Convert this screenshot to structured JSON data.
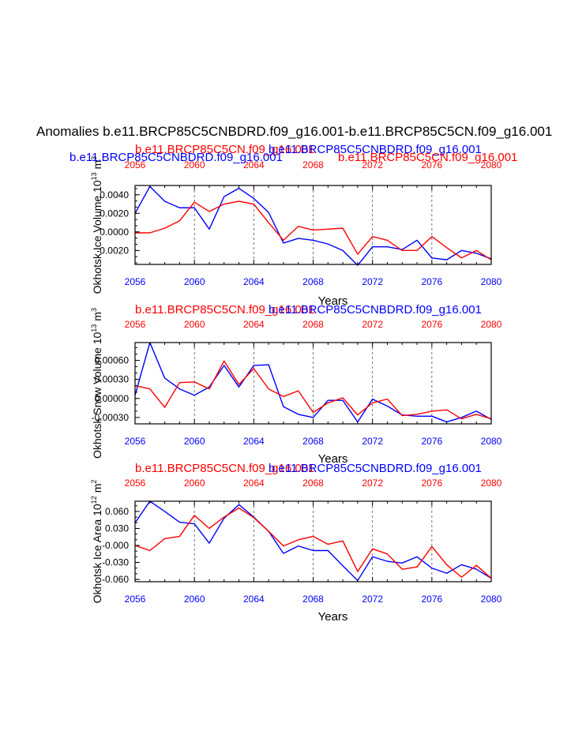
{
  "title": "Anomalies b.e11.BRCP85C5CNBDRD.f09_g16.001-b.e11.BRCP85C5CN.f09_g16.001",
  "colors": {
    "series_a": "#0000ff",
    "series_b": "#ff0000",
    "axis": "#000000",
    "grid": "#555555"
  },
  "chart_data": [
    {
      "type": "line",
      "id": "ice-volume",
      "ylabel_main": "Okhotsk Ice Volume 10",
      "ylabel_exp": "13",
      "ylabel_unit": "m",
      "ylabel_unit_exp": "3",
      "xlabel": "Years",
      "top_labels": [
        {
          "text": "b.e11.BRCP85C5CN.f09_g16.001",
          "color": "red",
          "pos": "left"
        },
        {
          "text": "b.e11.BRCP85C5CNBDRD.f09_g16.001",
          "color": "blue",
          "pos": "center"
        },
        {
          "text": "b.e11.BRCP85C5CNBDRD.f09_g16.001",
          "color": "blue",
          "pos": "far-left"
        },
        {
          "text": "b.e11.BRCP85C5CN.f09_g16.001",
          "color": "red",
          "pos": "right"
        }
      ],
      "xlim": [
        2056,
        2080
      ],
      "ylim": [
        -0.0035,
        0.005
      ],
      "x_ticks": [
        2056,
        2060,
        2064,
        2068,
        2072,
        2076,
        2080
      ],
      "y_ticks": [
        0.004,
        0.002,
        0.0,
        -0.002
      ],
      "y_tick_labels": [
        "0.0040",
        "0.0020",
        "0.0000",
        "-0.0020"
      ],
      "x": [
        2056,
        2057,
        2058,
        2059,
        2060,
        2061,
        2062,
        2063,
        2064,
        2065,
        2066,
        2067,
        2068,
        2069,
        2070,
        2071,
        2072,
        2073,
        2074,
        2075,
        2076,
        2077,
        2078,
        2079,
        2080
      ],
      "series": [
        {
          "name": "b.e11.BRCP85C5CNBDRD.f09_g16.001",
          "color": "blue",
          "values": [
            0.002,
            0.0049,
            0.0033,
            0.0026,
            0.0026,
            0.0003,
            0.0038,
            0.0047,
            0.0036,
            0.0021,
            -0.0012,
            -0.0007,
            -0.0009,
            -0.0013,
            -0.002,
            -0.0036,
            -0.0016,
            -0.0016,
            -0.0019,
            -0.0009,
            -0.0028,
            -0.003,
            -0.002,
            -0.0023,
            -0.0029
          ]
        },
        {
          "name": "b.e11.BRCP85C5CN.f09_g16.001",
          "color": "red",
          "values": [
            -0.0001,
            -0.0001,
            0.0004,
            0.0012,
            0.0032,
            0.0022,
            0.003,
            0.0033,
            0.003,
            0.001,
            -0.0009,
            0.0006,
            0.0002,
            0.0003,
            0.0004,
            -0.0024,
            -0.0005,
            -0.0009,
            -0.002,
            -0.002,
            -0.0005,
            -0.0017,
            -0.0028,
            -0.002,
            -0.003
          ]
        }
      ]
    },
    {
      "type": "line",
      "id": "snow-volume",
      "ylabel_main": "Okhotsk Snow Volume 10",
      "ylabel_exp": "13",
      "ylabel_unit": "m",
      "ylabel_unit_exp": "3",
      "xlabel": "Years",
      "top_labels": [
        {
          "text": "b.e11.BRCP85C5CN.f09_g16.001",
          "color": "red",
          "pos": "left"
        },
        {
          "text": "b.e11.BRCP85C5CNBDRD.f09_g16.001",
          "color": "blue",
          "pos": "center"
        }
      ],
      "xlim": [
        2056,
        2080
      ],
      "ylim": [
        -0.0004,
        0.00088
      ],
      "x_ticks": [
        2056,
        2060,
        2064,
        2068,
        2072,
        2076,
        2080
      ],
      "y_ticks": [
        0.0006,
        0.0003,
        0.0,
        -0.0003
      ],
      "y_tick_labels": [
        "0.00060",
        "0.00030",
        "0.00000",
        "-0.00030"
      ],
      "x": [
        2056,
        2057,
        2058,
        2059,
        2060,
        2061,
        2062,
        2063,
        2064,
        2065,
        2066,
        2067,
        2068,
        2069,
        2070,
        2071,
        2072,
        2073,
        2074,
        2075,
        2076,
        2077,
        2078,
        2079,
        2080
      ],
      "series": [
        {
          "name": "b.e11.BRCP85C5CNBDRD.f09_g16.001",
          "color": "blue",
          "values": [
            5e-05,
            0.00088,
            0.00032,
            0.00015,
            5e-05,
            0.00018,
            0.00052,
            0.00018,
            0.00052,
            0.00053,
            -0.00013,
            -0.00025,
            -0.0003,
            -3e-05,
            -3e-05,
            -0.00037,
            -1e-05,
            -0.00012,
            -0.00026,
            -0.00028,
            -0.00028,
            -0.00037,
            -0.0003,
            -0.0002,
            -0.00033
          ]
        },
        {
          "name": "b.e11.BRCP85C5CN.f09_g16.001",
          "color": "red",
          "values": [
            0.0002,
            0.00015,
            -0.00014,
            0.00025,
            0.00026,
            0.00015,
            0.00059,
            0.00022,
            0.00047,
            0.00015,
            3e-05,
            0.00012,
            -0.00022,
            -7e-05,
            1e-05,
            -0.00026,
            -7e-05,
            -1e-05,
            -0.00027,
            -0.00025,
            -0.0002,
            -0.00018,
            -0.00032,
            -0.00025,
            -0.00032
          ]
        }
      ]
    },
    {
      "type": "line",
      "id": "ice-area",
      "ylabel_main": "Okhotsk Ice Area 10",
      "ylabel_exp": "12",
      "ylabel_unit": "m",
      "ylabel_unit_exp": "2",
      "xlabel": "Years",
      "top_labels": [
        {
          "text": "b.e11.BRCP85C5CN.f09_g16.001",
          "color": "red",
          "pos": "left"
        },
        {
          "text": "b.e11.BRCP85C5CNBDRD.f09_g16.001",
          "color": "blue",
          "pos": "center"
        }
      ],
      "xlim": [
        2056,
        2080
      ],
      "ylim": [
        -0.064,
        0.078
      ],
      "x_ticks": [
        2056,
        2060,
        2064,
        2068,
        2072,
        2076,
        2080
      ],
      "y_ticks": [
        0.06,
        0.03,
        0.0,
        -0.03,
        -0.06
      ],
      "y_tick_labels": [
        "0.060",
        "0.030",
        "-0.000",
        "-0.030",
        "-0.060"
      ],
      "x": [
        2056,
        2057,
        2058,
        2059,
        2060,
        2061,
        2062,
        2063,
        2064,
        2065,
        2066,
        2067,
        2068,
        2069,
        2070,
        2071,
        2072,
        2073,
        2074,
        2075,
        2076,
        2077,
        2078,
        2079,
        2080
      ],
      "series": [
        {
          "name": "b.e11.BRCP85C5CNBDRD.f09_g16.001",
          "color": "blue",
          "values": [
            0.04,
            0.078,
            0.06,
            0.041,
            0.038,
            0.004,
            0.048,
            0.072,
            0.05,
            0.025,
            -0.014,
            -0.001,
            -0.009,
            -0.009,
            -0.036,
            -0.062,
            -0.02,
            -0.028,
            -0.031,
            -0.02,
            -0.04,
            -0.049,
            -0.034,
            -0.042,
            -0.058
          ]
        },
        {
          "name": "b.e11.BRCP85C5CN.f09_g16.001",
          "color": "red",
          "values": [
            0,
            -0.009,
            0.012,
            0.016,
            0.053,
            0.03,
            0.05,
            0.066,
            0.049,
            0.025,
            -0.001,
            0.01,
            0.016,
            0.002,
            0.008,
            -0.046,
            -0.006,
            -0.015,
            -0.042,
            -0.038,
            -0.002,
            -0.034,
            -0.056,
            -0.035,
            -0.058
          ]
        }
      ]
    }
  ]
}
